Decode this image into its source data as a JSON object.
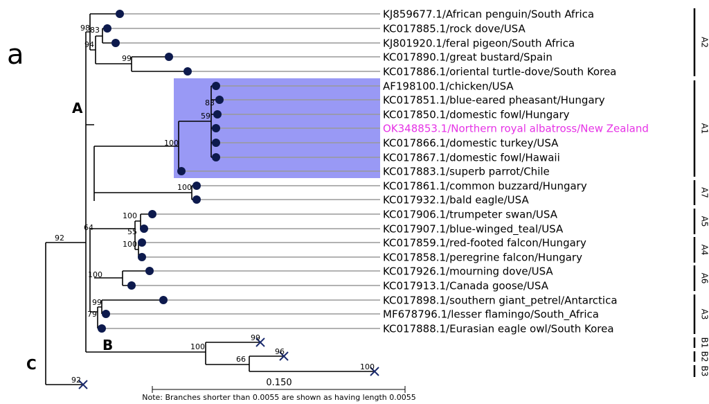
{
  "panel_label": "a",
  "leaves": [
    {
      "label": "KJ859677.1/African penguin/South Africa"
    },
    {
      "label": "KC017885.1/rock dove/USA"
    },
    {
      "label": "KJ801920.1/feral pigeon/South Africa"
    },
    {
      "label": "KC017890.1/great bustard/Spain"
    },
    {
      "label": "KC017886.1/oriental turtle-dove/South Korea"
    },
    {
      "label": "AF198100.1/chicken/USA"
    },
    {
      "label": "KC017851.1/blue-eared pheasant/Hungary"
    },
    {
      "label": "KC017850.1/domestic fowl/Hungary"
    },
    {
      "label": "OK348853.1/Northern royal albatross/New Zealand",
      "color": "#e633e6"
    },
    {
      "label": "KC017866.1/domestic turkey/USA"
    },
    {
      "label": "KC017867.1/domestic fowl/Hawaii"
    },
    {
      "label": "KC017883.1/superb parrot/Chile"
    },
    {
      "label": "KC017861.1/common buzzard/Hungary"
    },
    {
      "label": "KC017932.1/bald eagle/USA"
    },
    {
      "label": "KC017906.1/trumpeter swan/USA"
    },
    {
      "label": "KC017907.1/blue-winged_teal/USA"
    },
    {
      "label": "KC017859.1/red-footed falcon/Hungary"
    },
    {
      "label": "KC017858.1/peregrine falcon/Hungary"
    },
    {
      "label": "KC017926.1/mourning dove/USA"
    },
    {
      "label": "KC017913.1/Canada goose/USA"
    },
    {
      "label": "KC017898.1/southern giant_petrel/Antarctica"
    },
    {
      "label": "MF678796.1/lesser flamingo/South_Africa"
    },
    {
      "label": "KC017888.1/Eurasian eagle owl/South Korea"
    }
  ],
  "support": [
    98,
    83,
    94,
    99,
    83,
    59,
    100,
    100,
    100,
    55,
    100,
    64,
    92,
    100,
    99,
    79,
    100,
    99,
    96,
    66,
    100,
    92
  ],
  "clades": [
    "A",
    "B",
    "C"
  ],
  "groups": [
    "A2",
    "A1",
    "A7",
    "A5",
    "A4",
    "A6",
    "A3",
    "B1",
    "B2",
    "B3"
  ],
  "scale": "0.150",
  "note": "Note: Branches shorter than 0.0055 are shown as having length 0.0055"
}
